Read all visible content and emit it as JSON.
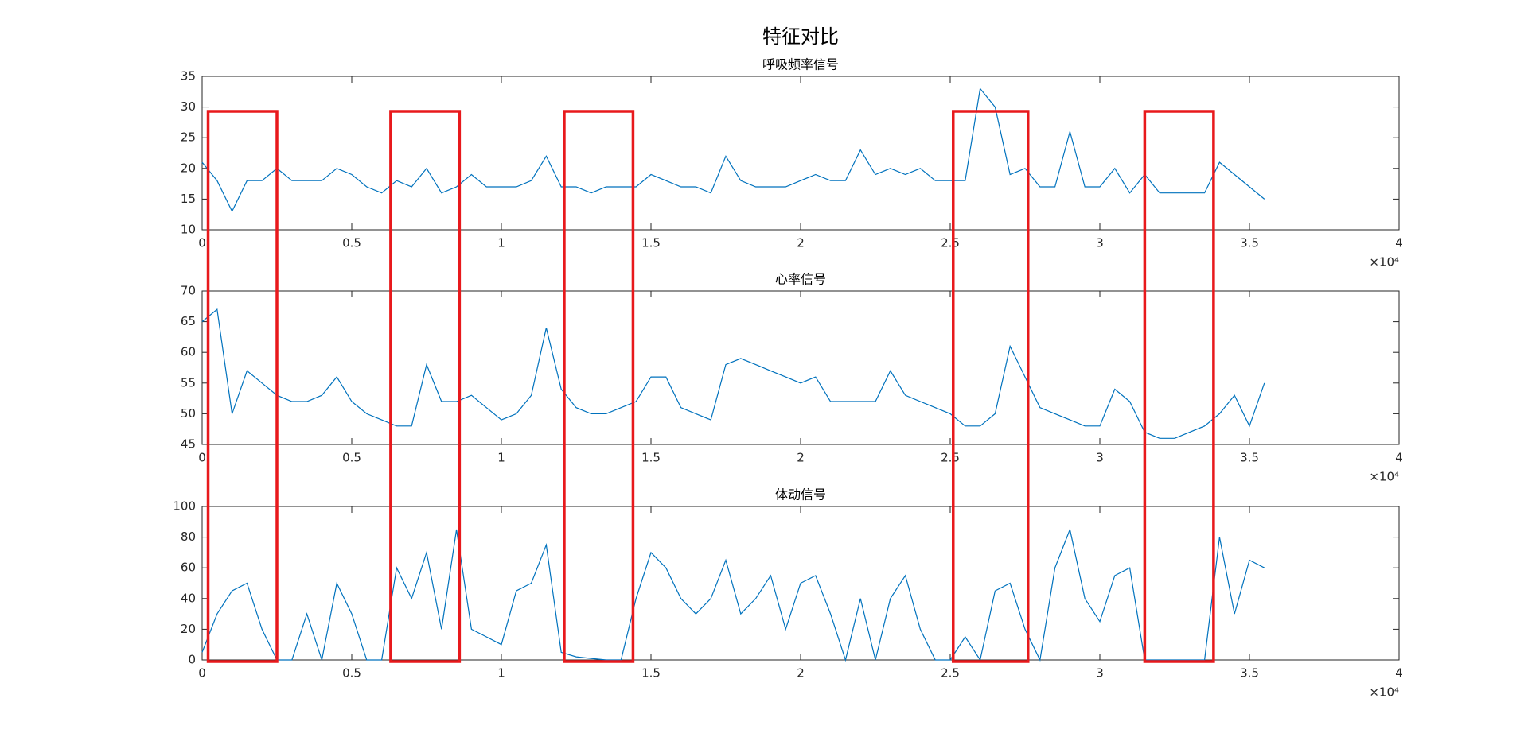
{
  "title": "特征对比",
  "highlight_color": "#e8191c",
  "highlights": [
    [
      0.02,
      0.25
    ],
    [
      0.63,
      0.86
    ],
    [
      1.21,
      1.44
    ],
    [
      2.51,
      2.76
    ],
    [
      3.15,
      3.38
    ]
  ],
  "chart_data": [
    {
      "type": "line",
      "title": "呼吸频率信号",
      "x": [
        0,
        0.05,
        0.1,
        0.15,
        0.2,
        0.25,
        0.3,
        0.35,
        0.4,
        0.45,
        0.5,
        0.55,
        0.6,
        0.65,
        0.7,
        0.75,
        0.8,
        0.85,
        0.9,
        0.95,
        1,
        1.05,
        1.1,
        1.15,
        1.2,
        1.25,
        1.3,
        1.35,
        1.4,
        1.45,
        1.5,
        1.55,
        1.6,
        1.65,
        1.7,
        1.75,
        1.8,
        1.85,
        1.9,
        1.95,
        2,
        2.05,
        2.1,
        2.15,
        2.2,
        2.25,
        2.3,
        2.35,
        2.4,
        2.45,
        2.5,
        2.55,
        2.6,
        2.65,
        2.7,
        2.75,
        2.8,
        2.85,
        2.9,
        2.95,
        3,
        3.05,
        3.1,
        3.15,
        3.2,
        3.25,
        3.3,
        3.35,
        3.4,
        3.45,
        3.5,
        3.55
      ],
      "series": [
        {
          "color": "#0072bd",
          "values": [
            21,
            18,
            13,
            18,
            18,
            20,
            18,
            18,
            18,
            20,
            19,
            17,
            16,
            18,
            17,
            20,
            16,
            17,
            19,
            17,
            17,
            17,
            18,
            22,
            17,
            17,
            16,
            17,
            17,
            17,
            19,
            18,
            17,
            17,
            16,
            22,
            18,
            17,
            17,
            17,
            18,
            19,
            18,
            18,
            23,
            19,
            20,
            19,
            20,
            18,
            18,
            18,
            33,
            30,
            19,
            20,
            17,
            17,
            26,
            17,
            17,
            20,
            16,
            19,
            16,
            16,
            16,
            16,
            21,
            19,
            17,
            15
          ]
        }
      ],
      "xlim": [
        0,
        4
      ],
      "xticks": [
        0,
        0.5,
        1,
        1.5,
        2,
        2.5,
        3,
        3.5,
        4
      ],
      "x_multiplier": "×10⁴",
      "ylim": [
        10,
        35
      ],
      "yticks": [
        10,
        15,
        20,
        25,
        30,
        35
      ]
    },
    {
      "type": "line",
      "title": "心率信号",
      "x": [
        0,
        0.05,
        0.1,
        0.15,
        0.2,
        0.25,
        0.3,
        0.35,
        0.4,
        0.45,
        0.5,
        0.55,
        0.6,
        0.65,
        0.7,
        0.75,
        0.8,
        0.85,
        0.9,
        0.95,
        1,
        1.05,
        1.1,
        1.15,
        1.2,
        1.25,
        1.3,
        1.35,
        1.4,
        1.45,
        1.5,
        1.55,
        1.6,
        1.65,
        1.7,
        1.75,
        1.8,
        1.85,
        1.9,
        1.95,
        2,
        2.05,
        2.1,
        2.15,
        2.2,
        2.25,
        2.3,
        2.35,
        2.4,
        2.45,
        2.5,
        2.55,
        2.6,
        2.65,
        2.7,
        2.75,
        2.8,
        2.85,
        2.9,
        2.95,
        3,
        3.05,
        3.1,
        3.15,
        3.2,
        3.25,
        3.3,
        3.35,
        3.4,
        3.45,
        3.5,
        3.55
      ],
      "series": [
        {
          "color": "#0072bd",
          "values": [
            65,
            67,
            50,
            57,
            55,
            53,
            52,
            52,
            53,
            56,
            52,
            50,
            49,
            48,
            48,
            58,
            52,
            52,
            53,
            51,
            49,
            50,
            53,
            64,
            54,
            51,
            50,
            50,
            51,
            52,
            56,
            56,
            51,
            50,
            49,
            58,
            59,
            58,
            57,
            56,
            55,
            56,
            52,
            52,
            52,
            52,
            57,
            53,
            52,
            51,
            50,
            48,
            48,
            50,
            61,
            56,
            51,
            50,
            49,
            48,
            48,
            54,
            52,
            47,
            46,
            46,
            47,
            48,
            50,
            53,
            48,
            55
          ]
        }
      ],
      "xlim": [
        0,
        4
      ],
      "xticks": [
        0,
        0.5,
        1,
        1.5,
        2,
        2.5,
        3,
        3.5,
        4
      ],
      "x_multiplier": "×10⁴",
      "ylim": [
        45,
        70
      ],
      "yticks": [
        45,
        50,
        55,
        60,
        65,
        70
      ]
    },
    {
      "type": "line",
      "title": "体动信号",
      "x": [
        0,
        0.05,
        0.1,
        0.15,
        0.2,
        0.25,
        0.3,
        0.35,
        0.4,
        0.45,
        0.5,
        0.55,
        0.6,
        0.65,
        0.7,
        0.75,
        0.8,
        0.85,
        0.9,
        0.95,
        1,
        1.05,
        1.1,
        1.15,
        1.2,
        1.25,
        1.3,
        1.35,
        1.4,
        1.45,
        1.5,
        1.55,
        1.6,
        1.65,
        1.7,
        1.75,
        1.8,
        1.85,
        1.9,
        1.95,
        2,
        2.05,
        2.1,
        2.15,
        2.2,
        2.25,
        2.3,
        2.35,
        2.4,
        2.45,
        2.5,
        2.55,
        2.6,
        2.65,
        2.7,
        2.75,
        2.8,
        2.85,
        2.9,
        2.95,
        3,
        3.05,
        3.1,
        3.15,
        3.2,
        3.25,
        3.3,
        3.35,
        3.4,
        3.45,
        3.5,
        3.55
      ],
      "series": [
        {
          "color": "#0072bd",
          "values": [
            5,
            30,
            45,
            50,
            20,
            0,
            0,
            30,
            0,
            50,
            30,
            0,
            0,
            60,
            40,
            70,
            20,
            85,
            20,
            15,
            10,
            45,
            50,
            75,
            5,
            2,
            1,
            0,
            0,
            40,
            70,
            60,
            40,
            30,
            40,
            65,
            30,
            40,
            55,
            20,
            50,
            55,
            30,
            0,
            40,
            0,
            40,
            55,
            20,
            0,
            0,
            15,
            0,
            45,
            50,
            20,
            0,
            60,
            85,
            40,
            25,
            55,
            60,
            0,
            0,
            0,
            0,
            0,
            80,
            30,
            65,
            60
          ]
        }
      ],
      "xlim": [
        0,
        4
      ],
      "xticks": [
        0,
        0.5,
        1,
        1.5,
        2,
        2.5,
        3,
        3.5,
        4
      ],
      "x_multiplier": "×10⁴",
      "ylim": [
        0,
        100
      ],
      "yticks": [
        0,
        20,
        40,
        60,
        80,
        100
      ]
    }
  ]
}
